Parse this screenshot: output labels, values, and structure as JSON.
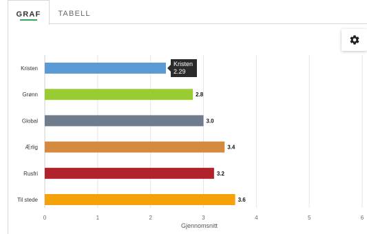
{
  "tabs": [
    {
      "label": "GRAF",
      "active": true
    },
    {
      "label": "TABELL",
      "active": false
    }
  ],
  "settings": {
    "icon": "gear-icon"
  },
  "tooltip": {
    "name": "Kristen",
    "value": "2.29"
  },
  "chart_data": {
    "type": "bar",
    "orientation": "horizontal",
    "categories": [
      "Kristen",
      "Grønn",
      "Global",
      "Ærlig",
      "Rusfri",
      "Til stede"
    ],
    "values": [
      2.29,
      2.8,
      3.0,
      3.4,
      3.2,
      3.6
    ],
    "data_labels": [
      "",
      "2.8",
      "3.0",
      "3.4",
      "3.2",
      "3.6"
    ],
    "colors": [
      "#5b9bd5",
      "#99cc33",
      "#6f7c8e",
      "#d48a3f",
      "#b2222a",
      "#f5a20a"
    ],
    "xlabel": "Gjennomsnitt",
    "ylabel": "",
    "xlim": [
      0,
      6
    ],
    "xticks": [
      "0",
      "1",
      "2",
      "3",
      "4",
      "5",
      "6"
    ],
    "grid": true
  }
}
